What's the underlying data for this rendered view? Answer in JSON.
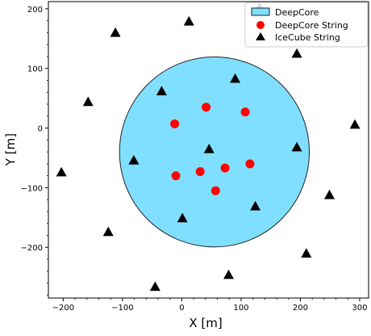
{
  "chart_data": {
    "type": "scatter",
    "xlabel": "X [m]",
    "ylabel": "Y [m]",
    "xlim": [
      -225,
      315
    ],
    "ylim": [
      -285,
      212
    ],
    "x_ticks": [
      -200,
      -100,
      0,
      100,
      200,
      300
    ],
    "y_ticks": [
      -200,
      -100,
      0,
      100,
      200
    ],
    "x_tick_labels": [
      "−200",
      "−100",
      "0",
      "100",
      "200",
      "300"
    ],
    "y_tick_labels": [
      "−200",
      "−100",
      "0",
      "100",
      "200"
    ],
    "legend_position": "top-right",
    "deepcore_region": {
      "name": "DeepCore",
      "center": [
        55,
        -40
      ],
      "radius": 160,
      "fill_color": "#80dfff",
      "edge_color": "#222222"
    },
    "series": [
      {
        "name": "DeepCore String",
        "marker": "circle",
        "color": "#ff0000",
        "points": [
          [
            41,
            35
          ],
          [
            107,
            27
          ],
          [
            -12,
            7
          ],
          [
            -10,
            -80
          ],
          [
            31,
            -73
          ],
          [
            73,
            -67
          ],
          [
            115,
            -60
          ],
          [
            57,
            -105
          ]
        ]
      },
      {
        "name": "IceCube String",
        "marker": "triangle",
        "color": "#000000",
        "points": [
          [
            131,
            202
          ],
          [
            12,
            179
          ],
          [
            -112,
            160
          ],
          [
            194,
            125
          ],
          [
            90,
            83
          ],
          [
            -34,
            62
          ],
          [
            -158,
            44
          ],
          [
            292,
            6
          ],
          [
            46,
            -35
          ],
          [
            194,
            -32
          ],
          [
            -81,
            -54
          ],
          [
            -203,
            -74
          ],
          [
            249,
            -112
          ],
          [
            124,
            -131
          ],
          [
            1,
            -151
          ],
          [
            -124,
            -174
          ],
          [
            210,
            -210
          ],
          [
            79,
            -246
          ],
          [
            -45,
            -266
          ]
        ]
      }
    ]
  }
}
